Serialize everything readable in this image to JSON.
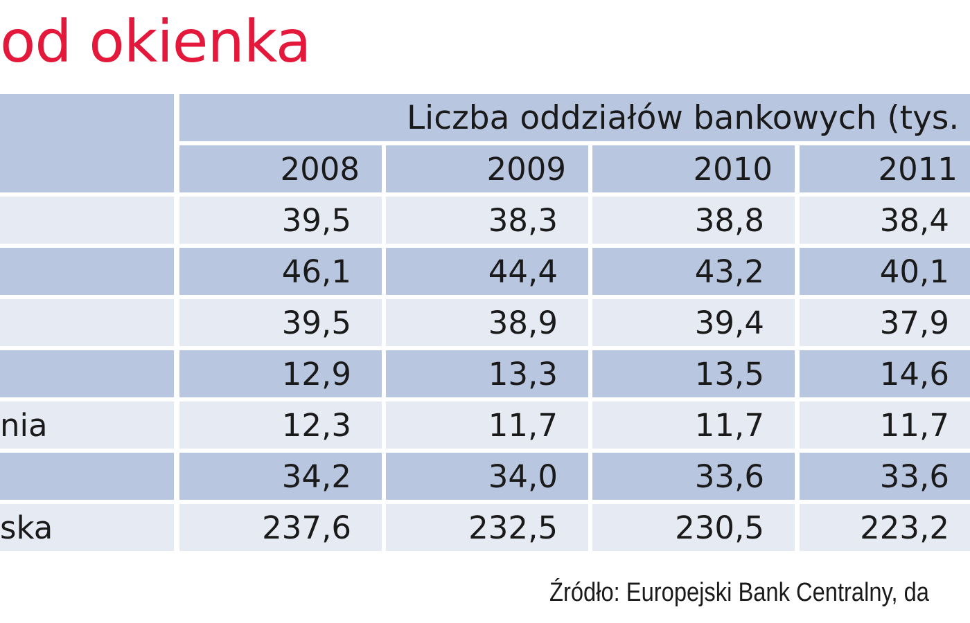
{
  "title": "od okienka",
  "source": "Źródło: Europejski Bank Centralny, da",
  "colors": {
    "title": "#e3183b",
    "row_dark": "#b8c6df",
    "row_light": "#e5eaf3"
  },
  "chart_data": {
    "type": "table",
    "column_header": "Liczba oddziałów bankowych (tys.",
    "years": [
      "2008",
      "2009",
      "2010",
      "2011"
    ],
    "row_labels": [
      "",
      "",
      "",
      "",
      "nia",
      "",
      "ska"
    ],
    "rows": [
      [
        "39,5",
        "38,3",
        "38,8",
        "38,4"
      ],
      [
        "46,1",
        "44,4",
        "43,2",
        "40,1"
      ],
      [
        "39,5",
        "38,9",
        "39,4",
        "37,9"
      ],
      [
        "12,9",
        "13,3",
        "13,5",
        "14,6"
      ],
      [
        "12,3",
        "11,7",
        "11,7",
        "11,7"
      ],
      [
        "34,2",
        "34,0",
        "33,6",
        "33,6"
      ],
      [
        "237,6",
        "232,5",
        "230,5",
        "223,2"
      ]
    ]
  }
}
